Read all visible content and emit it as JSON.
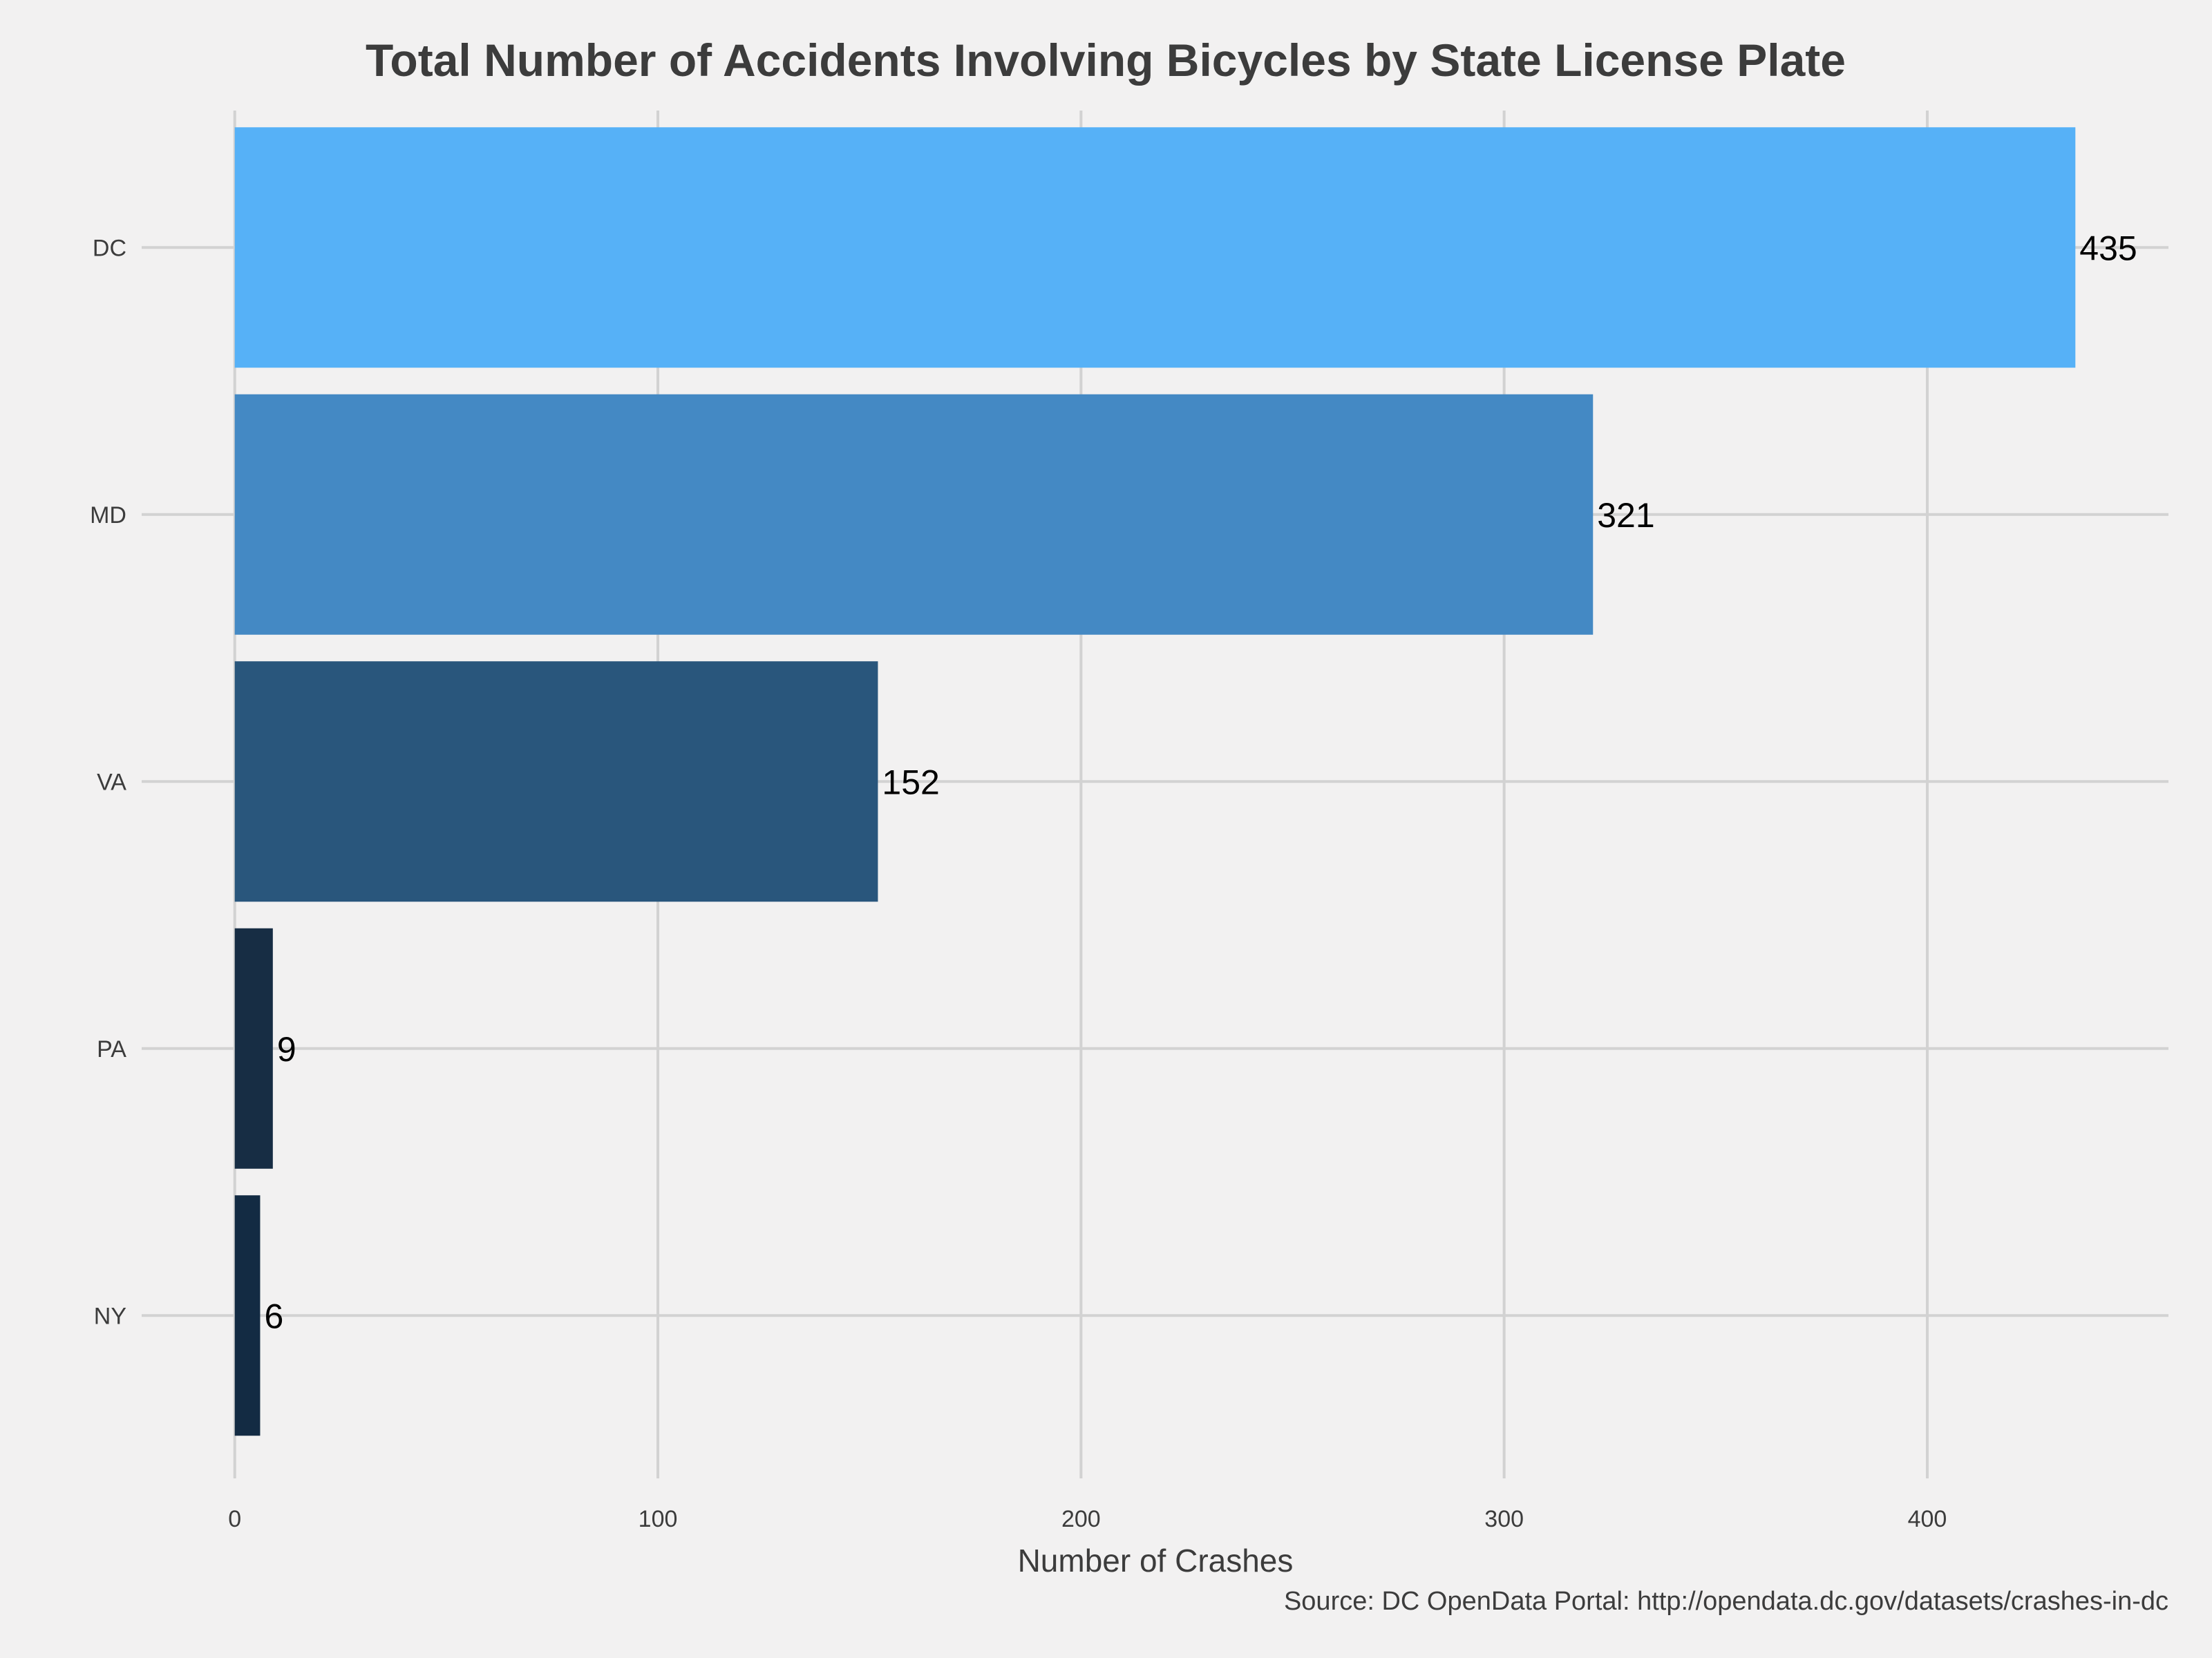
{
  "chart_data": {
    "type": "bar",
    "orientation": "horizontal",
    "title": "Total Number of Accidents Involving Bicycles by State License Plate",
    "xlabel": "Number of Crashes",
    "ylabel": "",
    "caption": "Source: DC OpenData Portal: http://opendata.dc.gov/datasets/crashes-in-dc",
    "categories": [
      "DC",
      "MD",
      "VA",
      "PA",
      "NY"
    ],
    "values": [
      435,
      321,
      152,
      9,
      6
    ],
    "data_labels": [
      "435",
      "321",
      "152",
      "9",
      "6"
    ],
    "colors": [
      "#56b1f7",
      "#4489c4",
      "#29567c",
      "#172d44",
      "#132b43"
    ],
    "xlim": [
      -22,
      457
    ],
    "xticks": [
      0,
      100,
      200,
      300,
      400
    ],
    "xtick_labels": [
      "0",
      "100",
      "200",
      "300",
      "400"
    ],
    "grid": true,
    "legend": "none",
    "background": "#f2f1f1",
    "gridline_color": "#d2d2d2",
    "text_color": "#3c3c3c"
  }
}
